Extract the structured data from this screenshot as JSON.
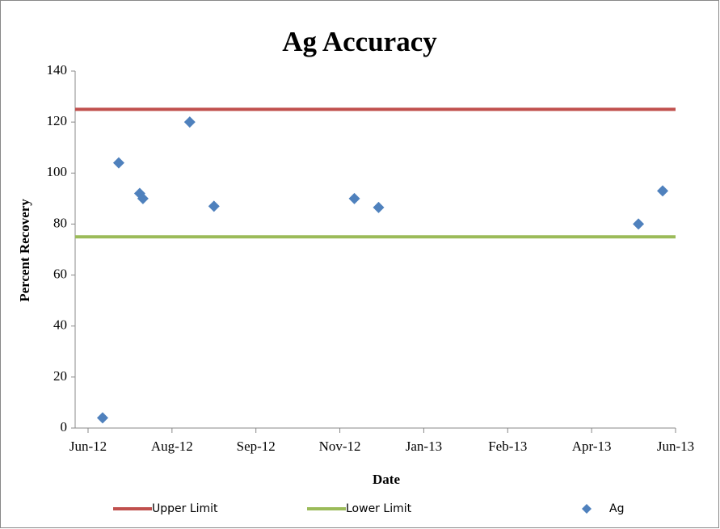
{
  "chart_data": {
    "type": "scatter",
    "title": "Ag Accuracy",
    "x_label": "Date",
    "y_label": "Percent Recovery",
    "xlim": [
      41062,
      41434
    ],
    "xticks": [
      {
        "value": 41070,
        "label": "Jun-12"
      },
      {
        "value": 41122,
        "label": "Aug-12"
      },
      {
        "value": 41174,
        "label": "Sep-12"
      },
      {
        "value": 41226,
        "label": "Nov-12"
      },
      {
        "value": 41278,
        "label": "Jan-13"
      },
      {
        "value": 41330,
        "label": "Feb-13"
      },
      {
        "value": 41382,
        "label": "Apr-13"
      },
      {
        "value": 41434,
        "label": "Jun-13"
      }
    ],
    "ylim": [
      0,
      140
    ],
    "yticks": [
      0,
      20,
      40,
      60,
      80,
      100,
      120,
      140
    ],
    "series": [
      {
        "name": "Upper Limit",
        "type": "line",
        "color": "#c0504d",
        "x": [
          41062,
          41434
        ],
        "values": [
          125,
          125
        ]
      },
      {
        "name": "Lower Limit",
        "type": "line",
        "color": "#9bbb59",
        "x": [
          41062,
          41434
        ],
        "values": [
          75,
          75
        ]
      },
      {
        "name": "Ag",
        "type": "scatter",
        "color": "#4f81bd",
        "x": [
          41079,
          41089,
          41102,
          41104,
          41133,
          41148,
          41235,
          41250,
          41411,
          41426
        ],
        "values": [
          4,
          104,
          92,
          90,
          120,
          87,
          90,
          86.5,
          80,
          93
        ]
      }
    ]
  }
}
